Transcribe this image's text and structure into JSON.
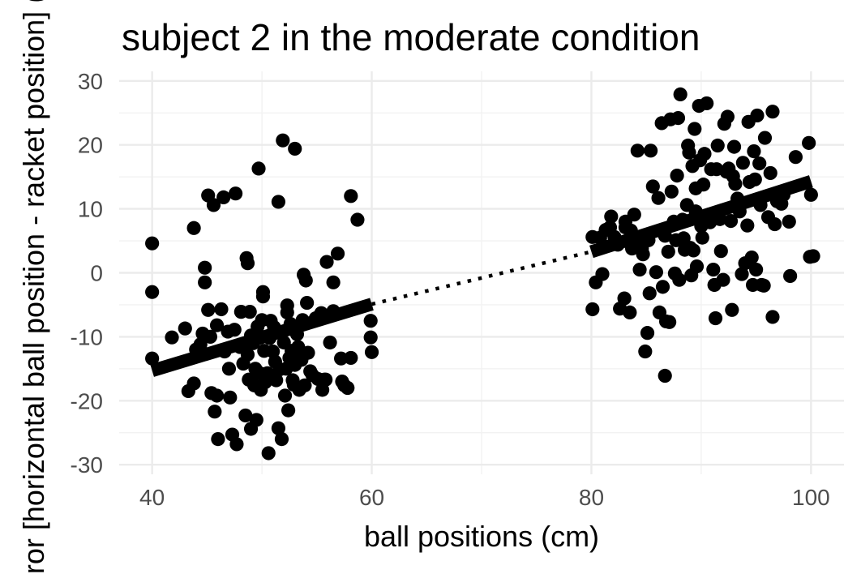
{
  "chart_data": {
    "type": "scatter",
    "title": "subject 2 in the moderate condition",
    "xlabel": "ball positions (cm)",
    "ylabel": "error [horizontal ball position - racket position] (cm)",
    "xlim": [
      37,
      103
    ],
    "ylim": [
      -31.5,
      31.5
    ],
    "x_ticks": [
      40,
      60,
      80,
      100
    ],
    "y_ticks": [
      -30,
      -20,
      -10,
      0,
      10,
      20,
      30
    ],
    "x_tick_labels": [
      "40",
      "60",
      "80",
      "100"
    ],
    "y_tick_labels": [
      "-30",
      "-20",
      "-10",
      "0",
      "10",
      "20",
      "30"
    ],
    "grid": true,
    "series": [
      {
        "points": [
          [
            40,
            4.6
          ],
          [
            40,
            -3
          ],
          [
            40,
            -13.4
          ],
          [
            41.8,
            -10.1
          ],
          [
            43,
            -8.7
          ],
          [
            43.3,
            -18.5
          ],
          [
            43.8,
            7
          ],
          [
            43.8,
            -17.3
          ],
          [
            44,
            -12
          ],
          [
            44.4,
            -11.2
          ],
          [
            44.6,
            -9.5
          ],
          [
            44.8,
            0.8
          ],
          [
            44.8,
            -1.5
          ],
          [
            45.1,
            12.1
          ],
          [
            45.1,
            -5.8
          ],
          [
            45.3,
            -10
          ],
          [
            45.4,
            -18.8
          ],
          [
            45.6,
            10.6
          ],
          [
            45.7,
            -21.7
          ],
          [
            45.9,
            -19.2
          ],
          [
            45.9,
            -8.2
          ],
          [
            46,
            -26
          ],
          [
            46.3,
            -5.7
          ],
          [
            46.5,
            11.8
          ],
          [
            46.6,
            -12.3
          ],
          [
            46.9,
            -9.2
          ],
          [
            47,
            -15
          ],
          [
            47.1,
            -19.5
          ],
          [
            47.3,
            -25.3
          ],
          [
            47.5,
            -8.9
          ],
          [
            47.6,
            12.4
          ],
          [
            47.7,
            -26.8
          ],
          [
            48,
            -11.6
          ],
          [
            48.1,
            -6.1
          ],
          [
            48.3,
            -14.2
          ],
          [
            48.5,
            -22.3
          ],
          [
            48.6,
            2.3
          ],
          [
            48.7,
            1.5
          ],
          [
            48.7,
            -12.8
          ],
          [
            48.8,
            -16.7
          ],
          [
            48.9,
            -6.1
          ],
          [
            49,
            -9.8
          ],
          [
            49,
            -24.4
          ],
          [
            49.2,
            -11
          ],
          [
            49.3,
            -17.6
          ],
          [
            49.4,
            -15
          ],
          [
            49.5,
            -23
          ],
          [
            49.6,
            -8.4
          ],
          [
            49.7,
            16.3
          ],
          [
            49.8,
            -15.7
          ],
          [
            49.9,
            -18.3
          ],
          [
            50,
            -7.4
          ],
          [
            50.1,
            -3.7
          ],
          [
            50.1,
            -3
          ],
          [
            50.2,
            -12.2
          ],
          [
            50.3,
            -17.1
          ],
          [
            50.5,
            -15.7
          ],
          [
            50.6,
            -28.2
          ],
          [
            50.7,
            -10.2
          ],
          [
            50.8,
            -7.5
          ],
          [
            50.8,
            -16.2
          ],
          [
            51,
            -12.3
          ],
          [
            51.1,
            -8.5
          ],
          [
            51.2,
            -13.9
          ],
          [
            51.3,
            -16.8
          ],
          [
            51.5,
            -24.3
          ],
          [
            51.5,
            11.1
          ],
          [
            51.6,
            -15.1
          ],
          [
            51.8,
            -26
          ],
          [
            51.9,
            20.7
          ],
          [
            52,
            -10.9
          ],
          [
            52.1,
            -19.2
          ],
          [
            52.2,
            -15
          ],
          [
            52.3,
            -6.2
          ],
          [
            52.3,
            -5.1
          ],
          [
            52.4,
            -21.5
          ],
          [
            52.5,
            -13.3
          ],
          [
            52.6,
            -8
          ],
          [
            52.7,
            -12.2
          ],
          [
            52.8,
            -16.8
          ],
          [
            52.9,
            -17.5
          ],
          [
            53,
            -14.4
          ],
          [
            53,
            19.4
          ],
          [
            53.2,
            -9.6
          ],
          [
            53.3,
            -11.6
          ],
          [
            53.4,
            -18.3
          ],
          [
            53.5,
            -12.4
          ],
          [
            53.6,
            -13.6
          ],
          [
            53.7,
            -7.4
          ],
          [
            53.8,
            -0.3
          ],
          [
            53.9,
            -17.6
          ],
          [
            54,
            -1.2
          ],
          [
            54.1,
            -4.7
          ],
          [
            54.2,
            -12.5
          ],
          [
            54.4,
            -15.4
          ],
          [
            54.6,
            -16
          ],
          [
            54.9,
            -7.1
          ],
          [
            55.1,
            -16.6
          ],
          [
            55.4,
            -6.3
          ],
          [
            55.5,
            -18.3
          ],
          [
            55.7,
            -16.7
          ],
          [
            55.8,
            -16.7
          ],
          [
            55.9,
            1.7
          ],
          [
            56.2,
            -10.9
          ],
          [
            56.5,
            -1.5
          ],
          [
            56.5,
            -6
          ],
          [
            56.9,
            3
          ],
          [
            57.2,
            -13.4
          ],
          [
            57.3,
            -17
          ],
          [
            57.5,
            -17.6
          ],
          [
            57.8,
            -18
          ],
          [
            58.1,
            -13.3
          ],
          [
            58.1,
            12
          ],
          [
            58.7,
            8.3
          ],
          [
            59.9,
            -7.5
          ],
          [
            59.9,
            -10.1
          ],
          [
            60,
            -12.4
          ],
          [
            80.1,
            5.6
          ],
          [
            80.1,
            -5.7
          ],
          [
            80.4,
            -1.5
          ],
          [
            80.8,
            5.5
          ],
          [
            81,
            -0.2
          ],
          [
            81.3,
            6.7
          ],
          [
            81.7,
            7.1
          ],
          [
            81.8,
            8.8
          ],
          [
            82.1,
            5.6
          ],
          [
            82.4,
            4.4
          ],
          [
            82.6,
            -5.6
          ],
          [
            83,
            -4
          ],
          [
            83.1,
            8
          ],
          [
            83.1,
            7.1
          ],
          [
            83.5,
            -6.2
          ],
          [
            83.6,
            6.6
          ],
          [
            83.7,
            3.8
          ],
          [
            83.9,
            9.1
          ],
          [
            84.2,
            19.1
          ],
          [
            84.3,
            4.7
          ],
          [
            84.4,
            0.5
          ],
          [
            84.6,
            3.8
          ],
          [
            84.7,
            2.9
          ],
          [
            84.9,
            -12.3
          ],
          [
            85.1,
            -9.4
          ],
          [
            85.2,
            5.1
          ],
          [
            85.3,
            -3.2
          ],
          [
            85.4,
            19.1
          ],
          [
            85.6,
            13.5
          ],
          [
            85.9,
            0.1
          ],
          [
            86.1,
            11.7
          ],
          [
            86.2,
            -6.2
          ],
          [
            86.4,
            23.4
          ],
          [
            86.5,
            -2.2
          ],
          [
            86.7,
            5.8
          ],
          [
            86.7,
            -16.1
          ],
          [
            86.8,
            -7.6
          ],
          [
            87,
            3.3
          ],
          [
            87.1,
            -7.7
          ],
          [
            87.2,
            24
          ],
          [
            87.3,
            12.7
          ],
          [
            87.5,
            8
          ],
          [
            87.6,
            -0.1
          ],
          [
            87.7,
            5.1
          ],
          [
            87.8,
            15.2
          ],
          [
            87.9,
            24.2
          ],
          [
            88,
            -1.1
          ],
          [
            88.1,
            27.9
          ],
          [
            88.3,
            8.3
          ],
          [
            88.4,
            5.4
          ],
          [
            88.5,
            3.6
          ],
          [
            88.7,
            10.6
          ],
          [
            88.8,
            19.9
          ],
          [
            88.9,
            18.8
          ],
          [
            89,
            3.9
          ],
          [
            89.1,
            -0.4
          ],
          [
            89.2,
            16.7
          ],
          [
            89.3,
            3.5
          ],
          [
            89.4,
            22.5
          ],
          [
            89.5,
            13.2
          ],
          [
            89.5,
            9.6
          ],
          [
            89.6,
            1
          ],
          [
            89.8,
            26.1
          ],
          [
            89.9,
            17.6
          ],
          [
            90,
            7.3
          ],
          [
            90.1,
            5.5
          ],
          [
            90.2,
            13.8
          ],
          [
            90.3,
            18.6
          ],
          [
            90.5,
            26.5
          ],
          [
            90.7,
            9.1
          ],
          [
            90.8,
            7.9
          ],
          [
            90.9,
            16.2
          ],
          [
            91.1,
            0.5
          ],
          [
            91.2,
            -1.9
          ],
          [
            91.3,
            -7.1
          ],
          [
            91.4,
            16.2
          ],
          [
            91.5,
            19.9
          ],
          [
            91.7,
            8.4
          ],
          [
            91.8,
            3.4
          ],
          [
            92,
            -1.1
          ],
          [
            92.1,
            23.3
          ],
          [
            92.3,
            15.8
          ],
          [
            92.4,
            24.4
          ],
          [
            92.5,
            16.3
          ],
          [
            92.7,
            8.1
          ],
          [
            92.8,
            -5.8
          ],
          [
            92.9,
            15.1
          ],
          [
            93,
            19.7
          ],
          [
            93.1,
            13.9
          ],
          [
            93.3,
            11.6
          ],
          [
            93.5,
            9.6
          ],
          [
            93.7,
            -0.2
          ],
          [
            93.8,
            17.2
          ],
          [
            94,
            1.5
          ],
          [
            94.2,
            7.4
          ],
          [
            94.3,
            23.6
          ],
          [
            94.4,
            14.2
          ],
          [
            94.6,
            2.4
          ],
          [
            94.7,
            -1.9
          ],
          [
            94.8,
            19
          ],
          [
            94.9,
            14.6
          ],
          [
            95,
            0.5
          ],
          [
            95.1,
            24.6
          ],
          [
            95.3,
            17.1
          ],
          [
            95.4,
            10.6
          ],
          [
            95.5,
            -1.9
          ],
          [
            95.7,
            -2
          ],
          [
            95.8,
            21.1
          ],
          [
            96.1,
            8.7
          ],
          [
            96.3,
            15.6
          ],
          [
            96.5,
            25.2
          ],
          [
            96.5,
            -6.9
          ],
          [
            96.7,
            7.6
          ],
          [
            96.9,
            11.2
          ],
          [
            97.3,
            10.8
          ],
          [
            97.5,
            12.2
          ],
          [
            98,
            8
          ],
          [
            98.1,
            -0.5
          ],
          [
            98.6,
            18.1
          ],
          [
            99.8,
            20.3
          ],
          [
            99.9,
            2.5
          ],
          [
            100,
            12.2
          ],
          [
            100.2,
            2.6
          ]
        ]
      }
    ],
    "fits": [
      {
        "style": "solid",
        "x": [
          40,
          60
        ],
        "y": [
          -15.3,
          -4.9
        ]
      },
      {
        "style": "dotted",
        "x": [
          60,
          80
        ],
        "y": [
          -4.9,
          3.3
        ]
      },
      {
        "style": "solid",
        "x": [
          80,
          100
        ],
        "y": [
          3.3,
          14.3
        ]
      }
    ]
  }
}
